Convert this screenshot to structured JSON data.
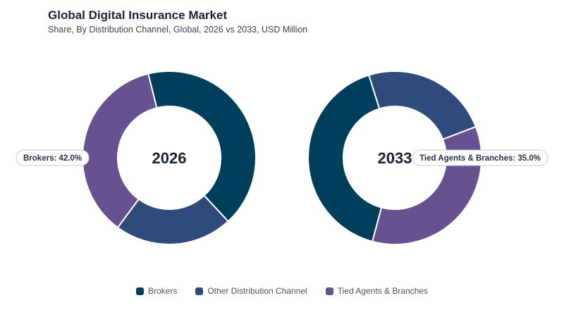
{
  "title": "Global Digital Insurance Market",
  "subtitle": "Share, By Distribution Channel, Global, 2026 vs 2033, USD Million",
  "colors": {
    "Brokers": "#003f5c",
    "Other Distribution Channel": "#2f4b7c",
    "Tied Agents & Branches": "#665191"
  },
  "chart_data": [
    {
      "type": "pie",
      "label": "2026",
      "categories": [
        "Brokers",
        "Other Distribution Channel",
        "Tied Agents & Branches"
      ],
      "values": [
        42.0,
        22.0,
        36.0
      ],
      "callout": "Brokers: 42.0%"
    },
    {
      "type": "pie",
      "label": "2033",
      "categories": [
        "Brokers",
        "Other Distribution Channel",
        "Tied Agents & Branches"
      ],
      "values": [
        41.0,
        24.0,
        35.0
      ],
      "callout": "Tied Agents & Branches: 35.0%"
    }
  ],
  "legend": [
    "Brokers",
    "Other Distribution Channel",
    "Tied Agents & Branches"
  ]
}
